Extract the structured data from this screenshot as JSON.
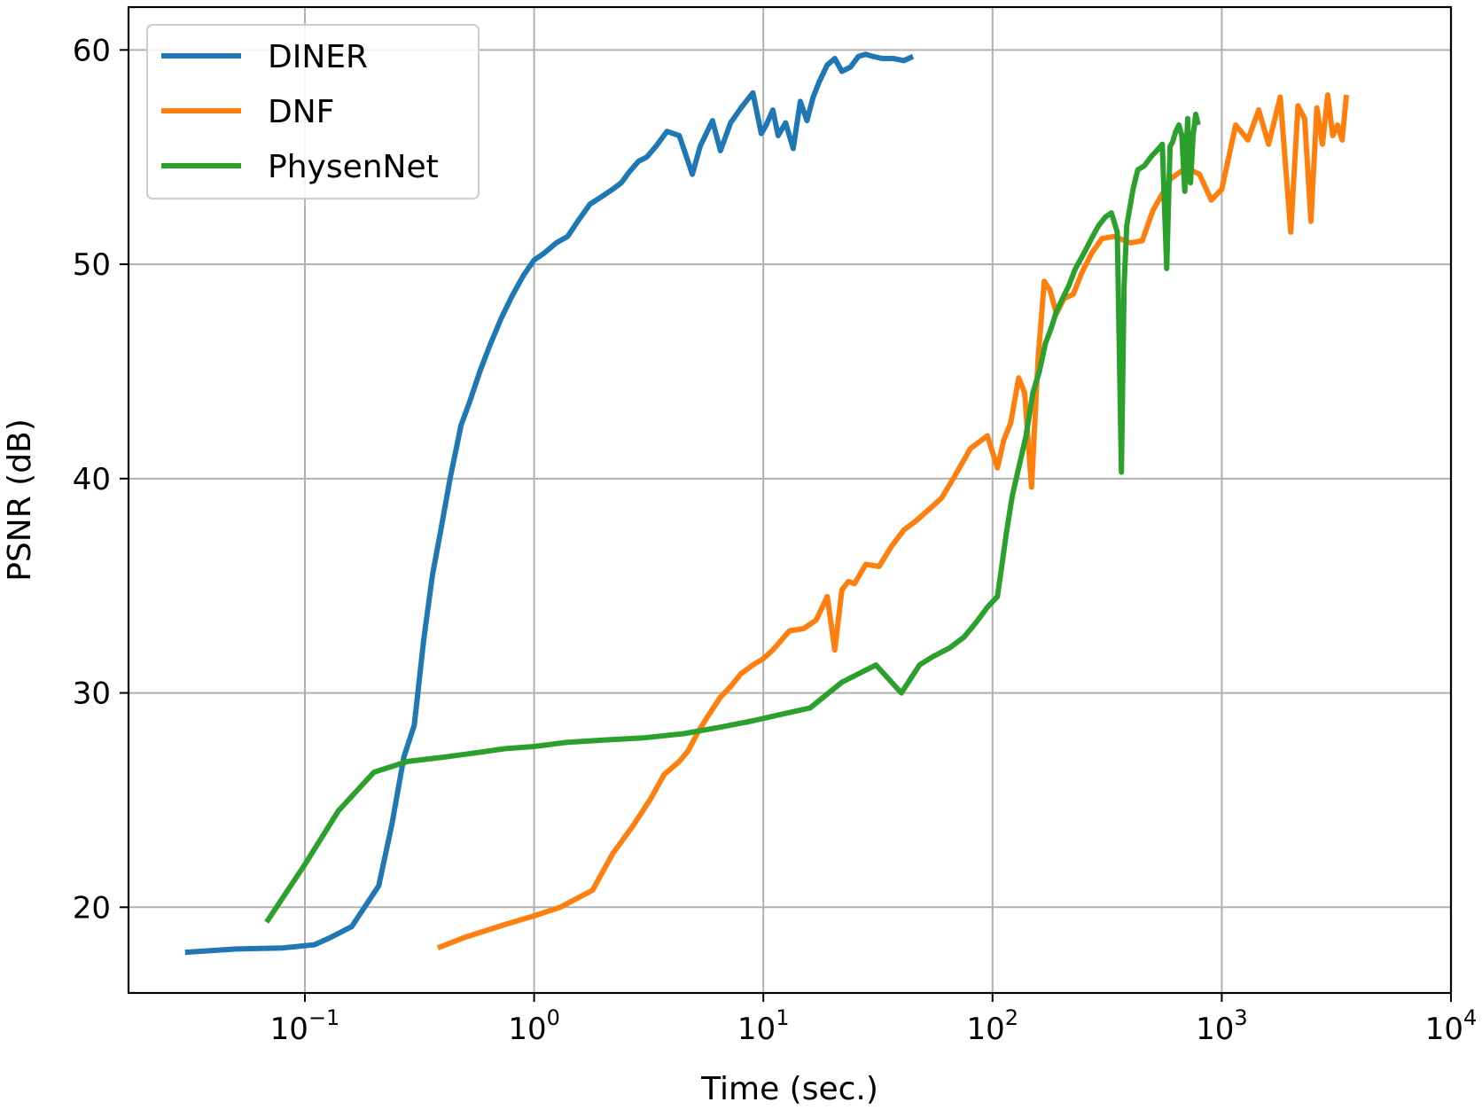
{
  "chart_data": {
    "type": "line",
    "title": "",
    "xlabel": "Time (sec.)",
    "ylabel": "PSNR (dB)",
    "xscale": "log",
    "xlim": [
      0.017,
      10000
    ],
    "ylim": [
      16,
      62
    ],
    "grid": true,
    "legend_position": "top-left",
    "x_ticks": [
      {
        "value": 0.1,
        "base": "10",
        "exp": "−1"
      },
      {
        "value": 1,
        "base": "10",
        "exp": "0"
      },
      {
        "value": 10,
        "base": "10",
        "exp": "1"
      },
      {
        "value": 100,
        "base": "10",
        "exp": "2"
      },
      {
        "value": 1000,
        "base": "10",
        "exp": "3"
      },
      {
        "value": 10000,
        "base": "10",
        "exp": "4"
      }
    ],
    "y_ticks": [
      {
        "value": 20,
        "label": "20"
      },
      {
        "value": 30,
        "label": "30"
      },
      {
        "value": 40,
        "label": "40"
      },
      {
        "value": 50,
        "label": "50"
      },
      {
        "value": 60,
        "label": "60"
      }
    ],
    "series": [
      {
        "name": "DINER",
        "color": "#1f77b4",
        "x": [
          0.03,
          0.05,
          0.08,
          0.11,
          0.13,
          0.16,
          0.21,
          0.24,
          0.27,
          0.3,
          0.33,
          0.36,
          0.39,
          0.43,
          0.48,
          0.52,
          0.58,
          0.64,
          0.72,
          0.8,
          0.9,
          1.0,
          1.1,
          1.25,
          1.4,
          1.55,
          1.75,
          2.0,
          2.2,
          2.4,
          2.6,
          2.85,
          3.1,
          3.4,
          3.8,
          4.3,
          4.9,
          5.3,
          6.0,
          6.5,
          7.2,
          8.0,
          9.0,
          9.8,
          10.3,
          11.0,
          11.6,
          12.5,
          13.5,
          14.5,
          15.5,
          16.5,
          17.5,
          19.0,
          20.5,
          22.0,
          24.0,
          26.0,
          28.0,
          30.0,
          33.0,
          37.0,
          41.0,
          45.0
        ],
        "y": [
          17.9,
          18.05,
          18.1,
          18.25,
          18.6,
          19.1,
          21.0,
          23.9,
          27.0,
          28.5,
          32.5,
          35.5,
          37.5,
          40.0,
          42.5,
          43.5,
          45.0,
          46.2,
          47.5,
          48.5,
          49.5,
          50.2,
          50.5,
          51.0,
          51.3,
          52.0,
          52.8,
          53.2,
          53.5,
          53.8,
          54.3,
          54.8,
          55.0,
          55.5,
          56.2,
          56.0,
          54.2,
          55.5,
          56.7,
          55.3,
          56.6,
          57.3,
          58.0,
          56.1,
          56.5,
          57.2,
          56.0,
          56.6,
          55.4,
          57.6,
          56.7,
          57.8,
          58.5,
          59.3,
          59.6,
          59.0,
          59.2,
          59.7,
          59.8,
          59.7,
          59.6,
          59.6,
          59.5,
          59.7
        ]
      },
      {
        "name": "DNF",
        "color": "#ff7f0e",
        "x": [
          0.38,
          0.5,
          0.75,
          1.0,
          1.3,
          1.8,
          2.2,
          2.7,
          3.2,
          3.7,
          4.3,
          4.7,
          5.2,
          5.8,
          6.5,
          7.2,
          8.0,
          9.0,
          10.0,
          11.0,
          13.0,
          15.0,
          17.0,
          19.0,
          20.5,
          22.0,
          23.5,
          25.0,
          28.0,
          32.0,
          36.0,
          41.0,
          46.0,
          52.0,
          60.0,
          70.0,
          80.0,
          95.0,
          105.0,
          112.0,
          120.0,
          130.0,
          138.0,
          148.0,
          158.0,
          163.0,
          168.0,
          178.0,
          190.0,
          205.0,
          225.0,
          245.0,
          270.0,
          300.0,
          340.0,
          400.0,
          450.0,
          500.0,
          600.0,
          700.0,
          800.0,
          900.0,
          1000.0,
          1150.0,
          1300.0,
          1450.0,
          1600.0,
          1800.0,
          2000.0,
          2150.0,
          2300.0,
          2450.0,
          2600.0,
          2750.0,
          2900.0,
          3050.0,
          3200.0,
          3350.0,
          3500.0
        ],
        "y": [
          18.1,
          18.6,
          19.2,
          19.6,
          20.0,
          20.8,
          22.5,
          23.8,
          25.0,
          26.2,
          26.8,
          27.3,
          28.2,
          29.0,
          29.8,
          30.3,
          30.9,
          31.3,
          31.6,
          32.0,
          32.9,
          33.0,
          33.4,
          34.5,
          32.0,
          34.8,
          35.2,
          35.1,
          36.0,
          35.9,
          36.8,
          37.6,
          38.0,
          38.5,
          39.1,
          40.3,
          41.4,
          42.0,
          40.5,
          41.8,
          42.6,
          44.7,
          44.0,
          39.6,
          45.6,
          47.4,
          49.2,
          48.8,
          47.7,
          48.4,
          48.6,
          49.6,
          50.5,
          51.2,
          51.3,
          51.0,
          51.1,
          52.5,
          54.0,
          54.5,
          54.2,
          53.0,
          53.5,
          56.5,
          55.8,
          57.2,
          55.6,
          57.8,
          51.5,
          57.4,
          56.8,
          52.0,
          57.3,
          55.6,
          57.9,
          56.0,
          56.5,
          55.8,
          57.9
        ]
      },
      {
        "name": "PhysenNet",
        "color": "#2ca02c",
        "x": [
          0.068,
          0.1,
          0.14,
          0.2,
          0.28,
          0.4,
          0.55,
          0.75,
          1.0,
          1.4,
          2.0,
          3.0,
          4.5,
          6.5,
          9.0,
          12.0,
          16.0,
          22.0,
          31.0,
          40.0,
          48.0,
          55.0,
          65.0,
          75.0,
          85.0,
          95.0,
          105.0,
          110.0,
          115.0,
          122.0,
          130.0,
          140.0,
          150.0,
          160.0,
          170.0,
          180.0,
          190.0,
          200.0,
          215.0,
          230.0,
          250.0,
          270.0,
          290.0,
          310.0,
          330.0,
          350.0,
          365.0,
          375.0,
          385.0,
          395.0,
          410.0,
          430.0,
          460.0,
          490.0,
          520.0,
          550.0,
          575.0,
          595.0,
          610.0,
          630.0,
          650.0,
          670.0,
          690.0,
          710.0,
          730.0,
          750.0,
          770.0,
          790.0
        ],
        "y": [
          19.3,
          22.0,
          24.5,
          26.3,
          26.8,
          27.0,
          27.2,
          27.4,
          27.5,
          27.7,
          27.8,
          27.9,
          28.1,
          28.4,
          28.7,
          29.0,
          29.3,
          30.5,
          31.3,
          30.0,
          31.3,
          31.7,
          32.1,
          32.6,
          33.3,
          34.0,
          34.5,
          36.0,
          37.5,
          39.2,
          40.5,
          42.0,
          44.0,
          45.0,
          46.3,
          47.0,
          47.8,
          48.3,
          49.0,
          49.8,
          50.5,
          51.2,
          51.8,
          52.2,
          52.4,
          51.5,
          40.3,
          49.0,
          51.8,
          52.5,
          53.5,
          54.4,
          54.6,
          55.0,
          55.3,
          55.6,
          49.8,
          55.5,
          55.7,
          56.2,
          56.5,
          56.0,
          53.4,
          56.8,
          53.8,
          56.0,
          57.0,
          56.5
        ]
      }
    ]
  }
}
